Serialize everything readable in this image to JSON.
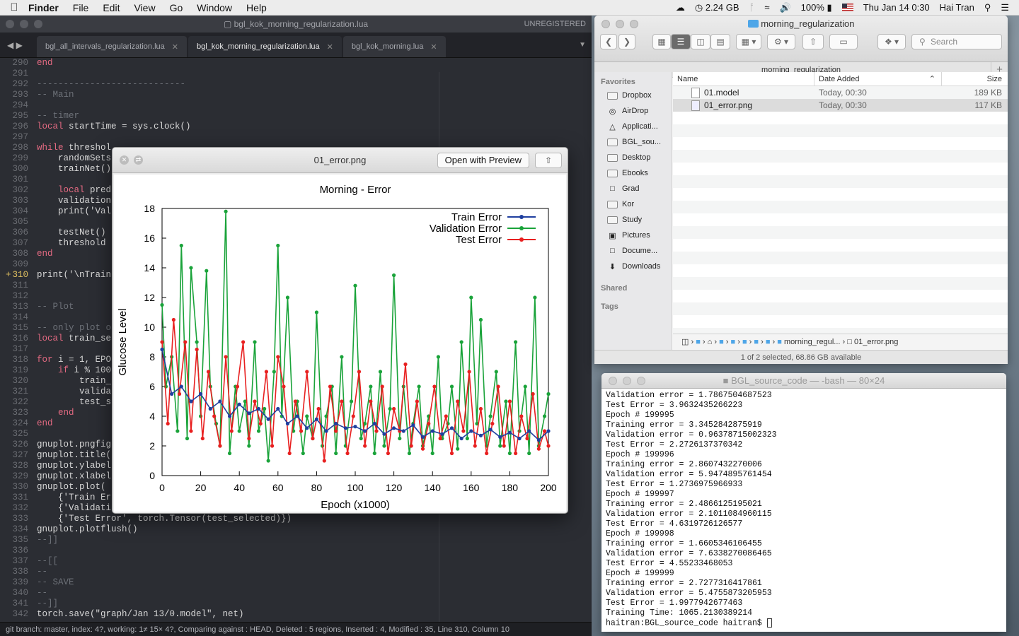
{
  "menubar": {
    "app_name": "Finder",
    "menus": [
      "File",
      "Edit",
      "View",
      "Go",
      "Window",
      "Help"
    ],
    "memory": "2.24 GB",
    "battery": "100%",
    "datetime": "Thu Jan 14  0:30",
    "user": "Hai Tran"
  },
  "editor": {
    "window_title": "bgl_kok_morning_regularization.lua",
    "unregistered": "UNREGISTERED",
    "tabs": [
      {
        "label": "bgl_all_intervals_regularization.lua",
        "active": false
      },
      {
        "label": "bgl_kok_morning_regularization.lua",
        "active": true
      },
      {
        "label": "bgl_kok_morning.lua",
        "active": false
      }
    ],
    "lines": [
      {
        "n": "290",
        "t": "end"
      },
      {
        "n": "291",
        "t": ""
      },
      {
        "n": "292",
        "t": "----------------------------"
      },
      {
        "n": "293",
        "t": "-- Main"
      },
      {
        "n": "294",
        "t": ""
      },
      {
        "n": "295",
        "t": "-- timer"
      },
      {
        "n": "296",
        "t": "local startTime = sys.clock()"
      },
      {
        "n": "297",
        "t": ""
      },
      {
        "n": "298",
        "t": "while threshol"
      },
      {
        "n": "299",
        "t": "    randomSets"
      },
      {
        "n": "300",
        "t": "    trainNet()"
      },
      {
        "n": "301",
        "t": ""
      },
      {
        "n": "302",
        "t": "    local pred"
      },
      {
        "n": "303",
        "t": "    validation"
      },
      {
        "n": "304",
        "t": "    print('Val"
      },
      {
        "n": "305",
        "t": ""
      },
      {
        "n": "306",
        "t": "    testNet()"
      },
      {
        "n": "307",
        "t": "    threshold"
      },
      {
        "n": "308",
        "t": "end"
      },
      {
        "n": "309",
        "t": ""
      },
      {
        "n": "310",
        "t": "print('\\nTrain"
      },
      {
        "n": "311",
        "t": ""
      },
      {
        "n": "312",
        "t": ""
      },
      {
        "n": "313",
        "t": "-- Plot"
      },
      {
        "n": "314",
        "t": ""
      },
      {
        "n": "315",
        "t": "-- only plot o"
      },
      {
        "n": "316",
        "t": "local train_se"
      },
      {
        "n": "317",
        "t": ""
      },
      {
        "n": "318",
        "t": "for i = 1, EPO"
      },
      {
        "n": "319",
        "t": "    if i % 100"
      },
      {
        "n": "320",
        "t": "        train_"
      },
      {
        "n": "321",
        "t": "        valida"
      },
      {
        "n": "322",
        "t": "        test_s"
      },
      {
        "n": "323",
        "t": "    end"
      },
      {
        "n": "324",
        "t": "end"
      },
      {
        "n": "325",
        "t": ""
      },
      {
        "n": "326",
        "t": "gnuplot.pngfig"
      },
      {
        "n": "327",
        "t": "gnuplot.title("
      },
      {
        "n": "328",
        "t": "gnuplot.ylabel"
      },
      {
        "n": "329",
        "t": "gnuplot.xlabel"
      },
      {
        "n": "330",
        "t": "gnuplot.plot("
      },
      {
        "n": "331",
        "t": "    {'Train Er"
      },
      {
        "n": "332",
        "t": "    {'Validati"
      },
      {
        "n": "333",
        "t": "    {'Test Error', torch.Tensor(test_selected)})"
      },
      {
        "n": "334",
        "t": "gnuplot.plotflush()"
      },
      {
        "n": "335",
        "t": "--]]"
      },
      {
        "n": "336",
        "t": ""
      },
      {
        "n": "337",
        "t": "--[["
      },
      {
        "n": "338",
        "t": "--"
      },
      {
        "n": "339",
        "t": "-- SAVE"
      },
      {
        "n": "340",
        "t": "--"
      },
      {
        "n": "341",
        "t": "--]]"
      },
      {
        "n": "342",
        "t": "torch.save(\"graph/Jan 13/0.model\", net)"
      }
    ],
    "status": "git branch: master, index: 4?, working: 1≠ 15× 4?, Comparing against : HEAD, Deleted : 5 regions, Inserted : 4, Modified : 35, Line 310, Column 10"
  },
  "finder": {
    "title": "morning_regularization",
    "search_placeholder": "Search",
    "path_tab": "morning_regularization",
    "sidebar": {
      "favorites_label": "Favorites",
      "favorites": [
        "Dropbox",
        "AirDrop",
        "Applicati...",
        "BGL_sou...",
        "Desktop",
        "Ebooks",
        "Grad",
        "Kor",
        "Study",
        "Pictures",
        "Docume...",
        "Downloads"
      ],
      "shared_label": "Shared",
      "tags_label": "Tags"
    },
    "columns": {
      "name": "Name",
      "date": "Date Added",
      "size": "Size"
    },
    "files": [
      {
        "name": "01.model",
        "date": "Today, 00:30",
        "size": "189 KB",
        "selected": false
      },
      {
        "name": "01_error.png",
        "date": "Today, 00:30",
        "size": "117 KB",
        "selected": true
      }
    ],
    "pathbar": {
      "folder": "morning_regul...",
      "file": "01_error.png"
    },
    "status": "1 of 2 selected, 68.86 GB available"
  },
  "terminal": {
    "title": "BGL_source_code — -bash — 80×24",
    "lines": [
      "Validation error = 1.7867504687523",
      "Test Error = 3.9632435266223",
      "Epoch # 199995",
      "Training error = 3.3452842875919",
      "Validation error = 0.96378715002323",
      "Test Error = 2.2726137370342",
      "Epoch # 199996",
      "Training error = 2.8607432270006",
      "Validation error = 5.9474895761454",
      "Test Error = 1.2736975966933",
      "Epoch # 199997",
      "Training error = 2.4866125195021",
      "Validation error = 2.1011084960115",
      "Test Error = 4.6319726126577",
      "Epoch # 199998",
      "Training error = 1.6605346106455",
      "Validation error = 7.6338270086465",
      "Test Error = 4.55233468053",
      "Epoch # 199999",
      "Training error = 2.7277316417861",
      "Validation error = 5.4755873205953",
      "Test Error = 1.9977942677463",
      "Training Time: 1065.2130389214"
    ],
    "prompt": "haitran:BGL_source_code haitran$ "
  },
  "quicklook": {
    "title": "01_error.png",
    "open_label": "Open with Preview"
  },
  "chart_data": {
    "type": "line",
    "title": "Morning - Error",
    "xlabel": "Epoch (x1000)",
    "ylabel": "Glucose Level",
    "xlim": [
      0,
      200
    ],
    "ylim": [
      0,
      18
    ],
    "xticks": [
      0,
      20,
      40,
      60,
      80,
      100,
      120,
      140,
      160,
      180,
      200
    ],
    "yticks": [
      0,
      2,
      4,
      6,
      8,
      10,
      12,
      14,
      16,
      18
    ],
    "legend": "top-right",
    "series": [
      {
        "name": "Train Error",
        "color": "#1f3f9f",
        "x": [
          0,
          5,
          10,
          15,
          20,
          25,
          30,
          35,
          40,
          45,
          50,
          55,
          60,
          65,
          70,
          75,
          80,
          85,
          90,
          95,
          100,
          105,
          110,
          115,
          120,
          125,
          130,
          135,
          140,
          145,
          150,
          155,
          160,
          165,
          170,
          175,
          180,
          185,
          190,
          195,
          200
        ],
        "values": [
          8.5,
          5.5,
          6.0,
          5.0,
          5.5,
          4.5,
          5.0,
          4.0,
          4.8,
          4.2,
          4.5,
          3.8,
          4.5,
          3.5,
          4.0,
          3.2,
          3.8,
          3.0,
          3.5,
          3.2,
          3.3,
          3.0,
          3.5,
          2.8,
          3.2,
          3.0,
          3.4,
          2.6,
          3.0,
          2.8,
          3.2,
          2.5,
          3.0,
          2.7,
          3.1,
          2.6,
          2.9,
          2.5,
          3.0,
          2.4,
          3.0
        ]
      },
      {
        "name": "Validation Error",
        "color": "#1aa33a",
        "x": [
          0,
          2,
          5,
          8,
          10,
          13,
          15,
          18,
          20,
          23,
          25,
          28,
          30,
          33,
          35,
          38,
          40,
          43,
          45,
          48,
          50,
          53,
          55,
          58,
          60,
          62,
          65,
          68,
          70,
          73,
          75,
          78,
          80,
          83,
          85,
          88,
          90,
          93,
          95,
          98,
          100,
          103,
          105,
          108,
          110,
          113,
          115,
          118,
          120,
          123,
          125,
          128,
          130,
          133,
          135,
          138,
          140,
          143,
          145,
          148,
          150,
          153,
          155,
          158,
          160,
          163,
          165,
          168,
          170,
          173,
          175,
          178,
          180,
          183,
          185,
          188,
          190,
          193,
          195,
          198,
          200
        ],
        "values": [
          11.5,
          6,
          8,
          3,
          15.5,
          2.5,
          14,
          9,
          4,
          13.8,
          6,
          3.5,
          2,
          17.8,
          1.5,
          6,
          3,
          5,
          2,
          9,
          3,
          4.5,
          1,
          7,
          15.5,
          4,
          12,
          3,
          5,
          1.5,
          4,
          2.5,
          11,
          2,
          4,
          6,
          1.5,
          8,
          2,
          5,
          12.8,
          2.5,
          3.5,
          6,
          1.5,
          7,
          2,
          4.5,
          13.5,
          2.5,
          6,
          1.5,
          3.5,
          6,
          2,
          4,
          1.5,
          8,
          2.5,
          3.5,
          6,
          1.8,
          9,
          2.5,
          12,
          3.5,
          10.5,
          2,
          4,
          7,
          2,
          5,
          1.5,
          9,
          3,
          6,
          1.5,
          12,
          2,
          4,
          5.5
        ]
      },
      {
        "name": "Test Error",
        "color": "#e82020",
        "x": [
          0,
          3,
          6,
          9,
          12,
          15,
          18,
          21,
          24,
          27,
          30,
          33,
          36,
          39,
          42,
          45,
          48,
          51,
          54,
          57,
          60,
          63,
          66,
          69,
          72,
          75,
          78,
          81,
          84,
          87,
          90,
          93,
          96,
          99,
          102,
          105,
          108,
          111,
          114,
          117,
          120,
          123,
          126,
          129,
          132,
          135,
          138,
          141,
          144,
          147,
          150,
          153,
          156,
          159,
          162,
          165,
          168,
          171,
          174,
          177,
          180,
          183,
          186,
          189,
          192,
          195,
          198,
          200
        ],
        "values": [
          9,
          3.5,
          10.5,
          5.5,
          9,
          3,
          8.5,
          2.5,
          7,
          4,
          2,
          8,
          3,
          6,
          9,
          2.5,
          5,
          3.5,
          7,
          2,
          8,
          6,
          1.5,
          5,
          3,
          7,
          2.5,
          4.5,
          1,
          6,
          3,
          5,
          1.5,
          4,
          7,
          2,
          5,
          3,
          6,
          1.5,
          4.5,
          3,
          7.5,
          2,
          5,
          1.8,
          3.5,
          6,
          2.5,
          4,
          1.5,
          5,
          3,
          7,
          2,
          4.5,
          1.5,
          3.5,
          6,
          2,
          5,
          1.5,
          4,
          2.5,
          5.5,
          1.8,
          3,
          2
        ]
      }
    ]
  }
}
